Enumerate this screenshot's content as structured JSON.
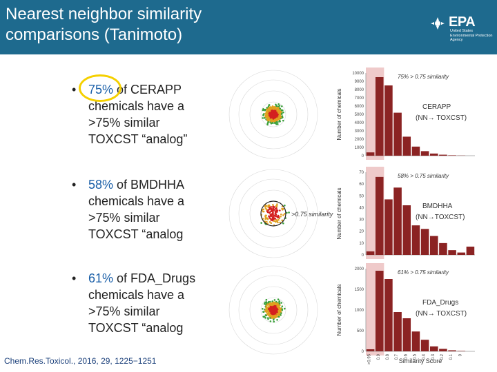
{
  "slide": {
    "title_line1": "Nearest neighbor similarity",
    "title_line2": "comparisons (Tanimoto)",
    "logo": {
      "name": "EPA",
      "sub_line1": "United States",
      "sub_line2": "Environmental Protection",
      "sub_line3": "Agency"
    },
    "bullets": [
      {
        "pct": "75%",
        "l1": " of CERAPP",
        "l2": "chemicals have a",
        "l3": ">75% similar",
        "l4": "TOXCST “analog”"
      },
      {
        "pct": "58%",
        "l1": " of BMDHHA",
        "l2": "chemicals have a",
        "l3": ">75% similar",
        "l4": "TOXCST “analog"
      },
      {
        "pct": "61%",
        "l1": " of FDA_Drugs",
        "l2": "chemicals have a",
        "l3": ">75% similar",
        "l4": "TOXCST “analog"
      }
    ],
    "citation": "Chem.Res.Toxicol., 2016, 29, 1225−1251",
    "bullet_char": "•",
    "scatter_label": ">0.75 similarity",
    "colors": {
      "header": "#1e6a8e",
      "bar": "#8b2323",
      "highlight": "#e8b4b4",
      "accent": "#1a5fa8",
      "circle": "#f5d000"
    }
  },
  "chart_data": [
    {
      "type": "bar",
      "title": "CERAPP (NN→ TOXCST)",
      "dataset": "CERAPP",
      "dataset_sub": "(NN→ TOXCST)",
      "annotation": "75% > 0.75 similarity",
      "ylabel": "Number of chemicals",
      "ylim": [
        0,
        10000
      ],
      "yticks": [
        "0",
        "1000",
        "2000",
        "3000",
        "4000",
        "5000",
        "6000",
        "7000",
        "8000",
        "9000",
        "10000"
      ],
      "values": [
        400,
        9500,
        8500,
        5200,
        2300,
        1100,
        550,
        260,
        120,
        50,
        20,
        0
      ],
      "highlight_bins": 2
    },
    {
      "type": "bar",
      "title": "BMDHHA (NN→TOXCST)",
      "dataset": "BMDHHA",
      "dataset_sub": "(NN→TOXCST)",
      "annotation": "58% > 0.75 similarity",
      "ylabel": "Number of chemicals",
      "ylim": [
        0,
        70
      ],
      "yticks": [
        "0",
        "10",
        "20",
        "30",
        "40",
        "50",
        "60",
        "70"
      ],
      "values": [
        3,
        66,
        47,
        57,
        42,
        25,
        22,
        16,
        10,
        4,
        2,
        7
      ],
      "highlight_bins": 2
    },
    {
      "type": "bar",
      "title": "FDA_Drugs (NN→ TOXCST)",
      "dataset": "FDA_Drugs",
      "dataset_sub": "(NN→ TOXCST)",
      "annotation": "61% > 0.75 similarity",
      "ylabel": "Number of chemicals",
      "ylim": [
        0,
        2000
      ],
      "yticks": [
        "0",
        "500",
        "1000",
        "1500",
        "2000"
      ],
      "values": [
        50,
        1950,
        1750,
        950,
        800,
        480,
        280,
        120,
        60,
        25,
        10,
        0
      ],
      "highlight_bins": 2,
      "xlabel": "Similarity Score",
      "xticks": [
        ">0.95",
        "0.9",
        "0.8",
        "0.7",
        "0.6",
        "0.5",
        "0.4",
        "0.3",
        "0.2",
        "0.1",
        "0"
      ]
    }
  ]
}
